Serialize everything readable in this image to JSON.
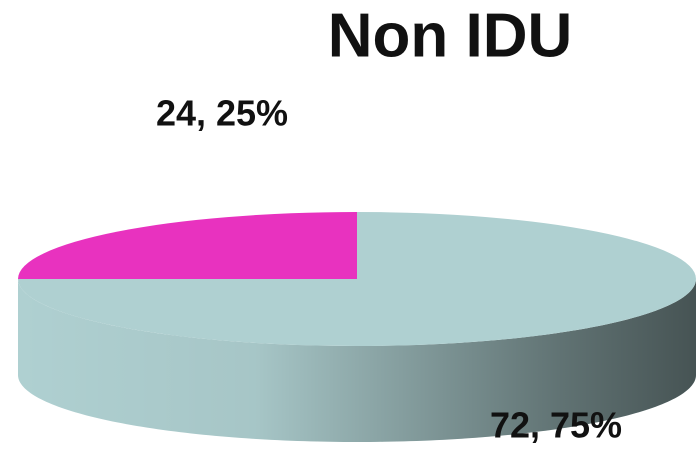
{
  "chart_data": {
    "type": "pie",
    "title": "Non IDU",
    "values": [
      24,
      72
    ],
    "value_labels": [
      "24, 25%",
      "72, 75%"
    ],
    "colors": [
      "#e832bf",
      "#afd0d1"
    ]
  }
}
